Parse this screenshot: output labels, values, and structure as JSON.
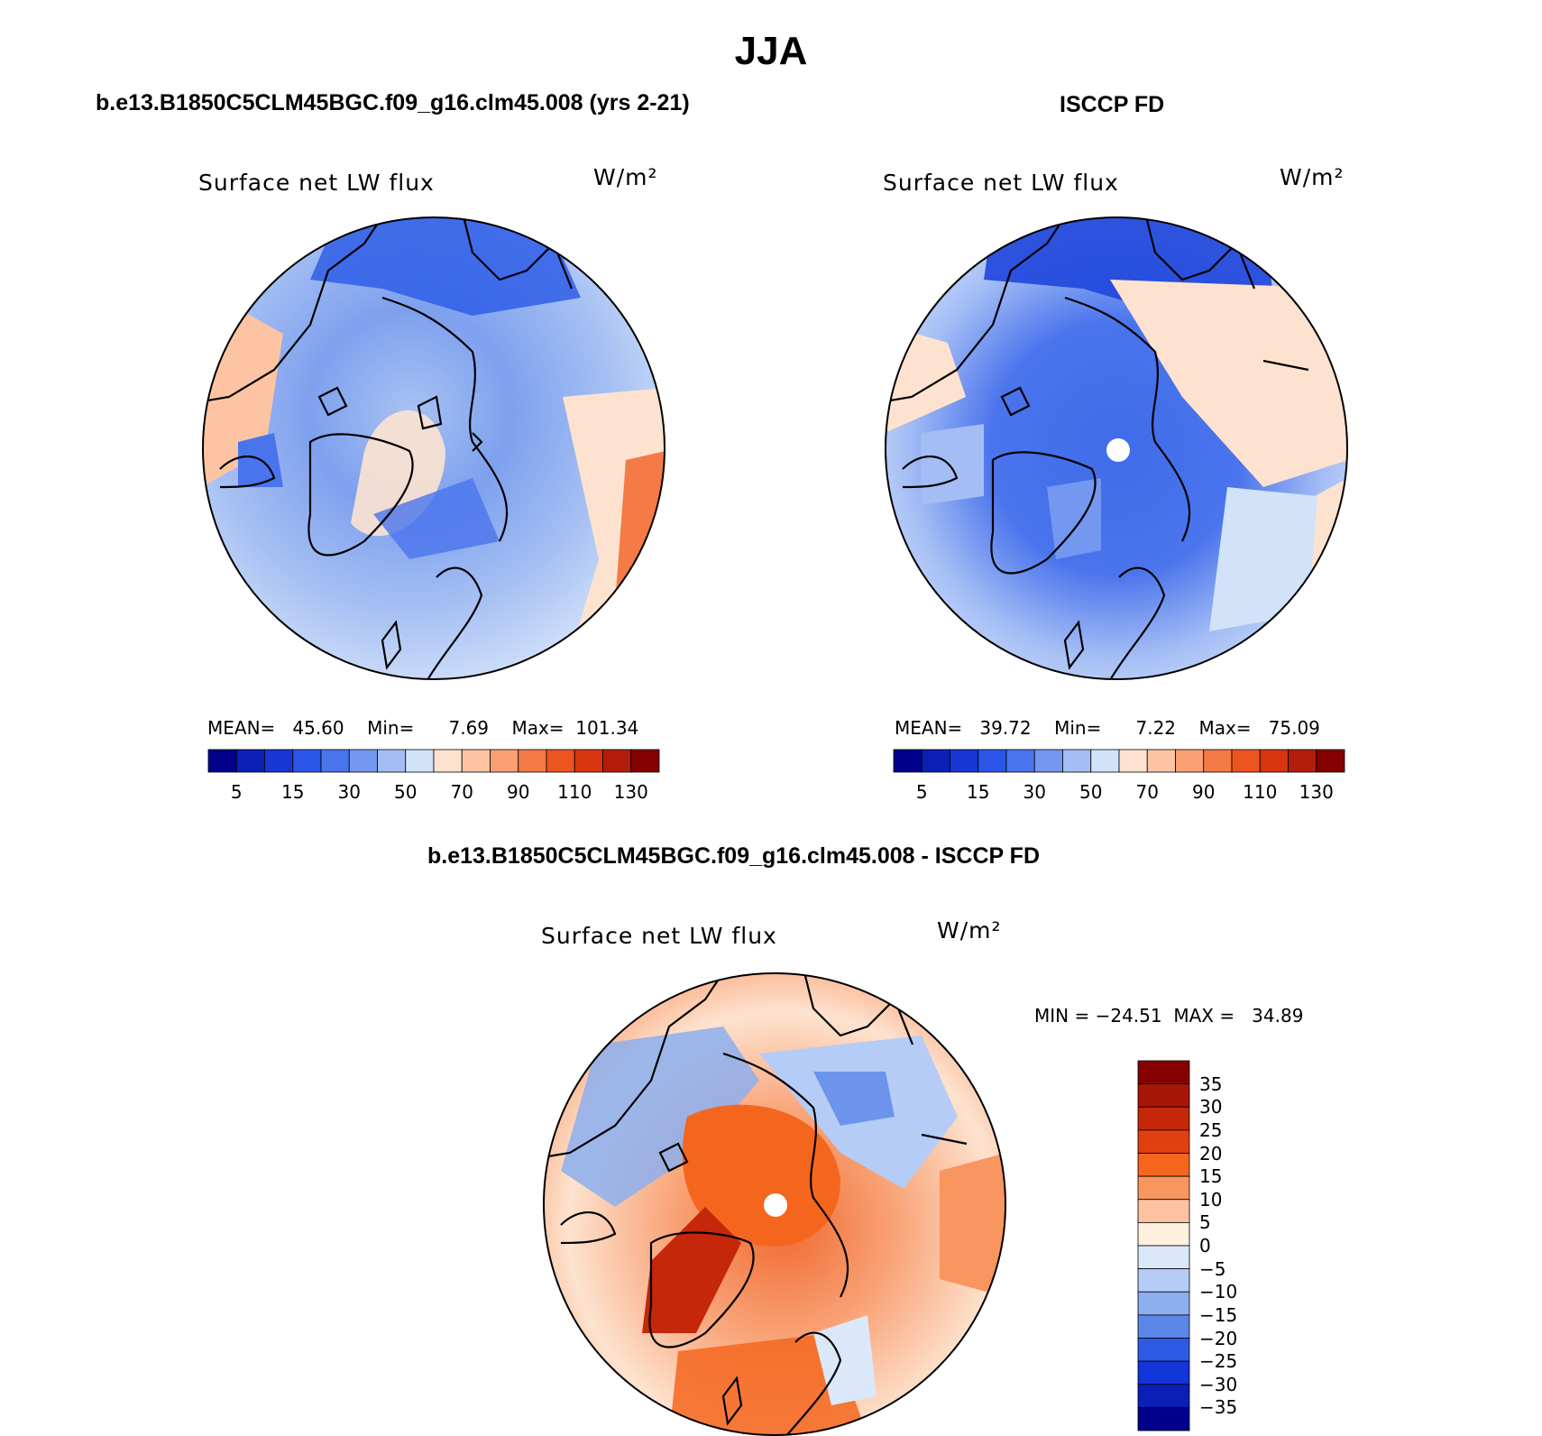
{
  "figure": {
    "title": "JJA",
    "units": "W/m²"
  },
  "panel_model": {
    "case_title": "b.e13.B1850C5CLM45BGC.f09_g16.clm45.008 (yrs 2-21)",
    "variable_label": "Surface net LW flux",
    "units": "W/m²",
    "stats": {
      "mean_label": "MEAN=",
      "mean": "45.60",
      "min_label": "Min=",
      "min": "7.69",
      "max_label": "Max=",
      "max": "101.34"
    },
    "map_region": "Arctic polar stereographic"
  },
  "panel_obs": {
    "case_title": "ISCCP FD",
    "variable_label": "Surface net LW flux",
    "units": "W/m²",
    "stats": {
      "mean_label": "MEAN=",
      "mean": "39.72",
      "min_label": "Min=",
      "min": "7.22",
      "max_label": "Max=",
      "max": "75.09"
    },
    "map_region": "Arctic polar stereographic"
  },
  "panel_diff": {
    "case_title": "b.e13.B1850C5CLM45BGC.f09_g16.clm45.008 - ISCCP FD",
    "variable_label": "Surface net LW flux",
    "units": "W/m²",
    "stats": {
      "min_label": "MIN =",
      "min": "−24.51",
      "max_label": "MAX =",
      "max": "34.89"
    },
    "map_region": "Arctic polar stereographic"
  },
  "colorbar_abs": {
    "colors": [
      "#00008b",
      "#0a1fb3",
      "#1736d4",
      "#2a55e8",
      "#4a74ec",
      "#7497f0",
      "#a4bdf5",
      "#d2e2f9",
      "#fde3cf",
      "#fcc4a3",
      "#f9a074",
      "#f47a46",
      "#ec5420",
      "#d9350e",
      "#b31e0c",
      "#850000"
    ],
    "ticks": [
      "5",
      "15",
      "30",
      "50",
      "70",
      "90",
      "110",
      "130"
    ]
  },
  "colorbar_diff": {
    "colors": [
      "#850000",
      "#a81607",
      "#c5270b",
      "#e0400f",
      "#f4661e",
      "#f9955f",
      "#fdc3a1",
      "#fef0dc",
      "#dbe8f9",
      "#b5cdf6",
      "#8cafef",
      "#5a86e8",
      "#2e5ae6",
      "#1334d9",
      "#0a1fb6",
      "#00008b"
    ],
    "ticks": [
      "35",
      "30",
      "25",
      "20",
      "15",
      "10",
      "5",
      "0",
      "−5",
      "−10",
      "−15",
      "−20",
      "−25",
      "−30",
      "−35"
    ]
  }
}
